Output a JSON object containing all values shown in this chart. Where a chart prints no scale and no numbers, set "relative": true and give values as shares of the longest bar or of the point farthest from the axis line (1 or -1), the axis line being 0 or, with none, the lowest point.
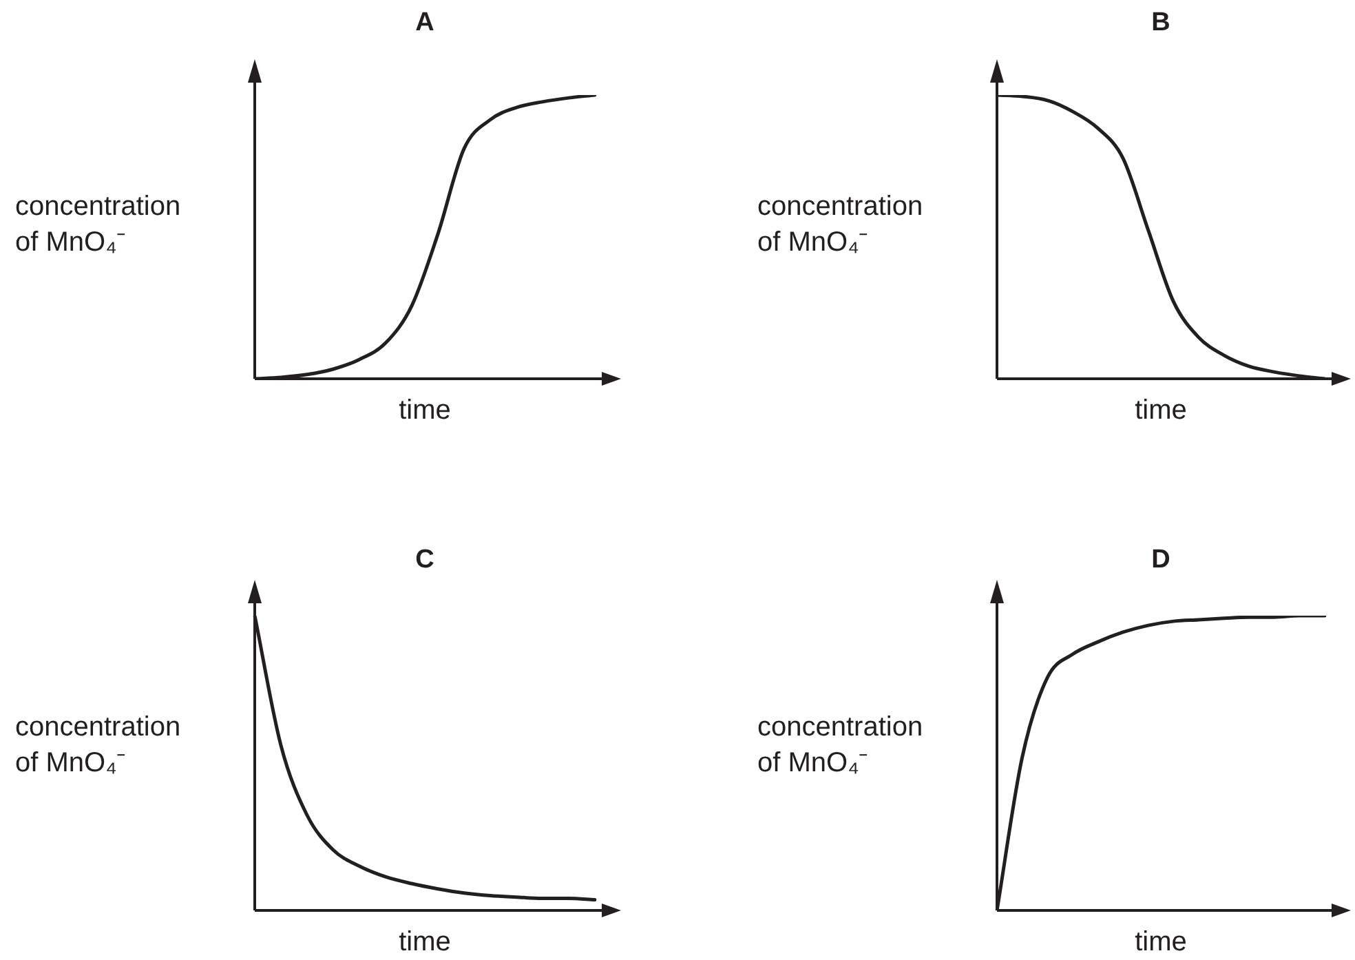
{
  "chart_data": [
    {
      "type": "line",
      "title": "A",
      "xlabel": "time",
      "ylabel": "concentration of MnO₄⁻",
      "relative": true,
      "marker": "none",
      "categories": [
        null,
        null,
        null,
        null,
        null,
        null,
        null,
        null,
        null,
        null,
        null,
        null,
        null,
        null
      ],
      "series": [
        {
          "color": "#231f20",
          "values": [
            0,
            0.005,
            0.015,
            0.034,
            0.068,
            0.126,
            0.257,
            0.51,
            0.811,
            0.913,
            0.956,
            0.976,
            0.99,
            1
          ]
        }
      ]
    },
    {
      "type": "line",
      "title": "B",
      "xlabel": "time",
      "ylabel": "concentration of MnO₄⁻",
      "relative": true,
      "marker": "none",
      "categories": [
        null,
        null,
        null,
        null,
        null,
        null,
        null,
        null,
        null,
        null,
        null,
        null,
        null,
        null
      ],
      "series": [
        {
          "color": "#231f20",
          "values": [
            1,
            0.995,
            0.981,
            0.942,
            0.883,
            0.777,
            0.524,
            0.272,
            0.146,
            0.083,
            0.044,
            0.024,
            0.01,
            0
          ]
        }
      ]
    },
    {
      "type": "line",
      "title": "C",
      "xlabel": "time",
      "ylabel": "concentration of MnO₄⁻",
      "relative": true,
      "marker": "none",
      "categories": [
        null,
        null,
        null,
        null,
        null,
        null,
        null,
        null,
        null,
        null,
        null,
        null,
        null,
        null
      ],
      "series": [
        {
          "color": "#231f20",
          "values": [
            1,
            0.56,
            0.323,
            0.205,
            0.15,
            0.114,
            0.091,
            0.073,
            0.059,
            0.05,
            0.045,
            0.041,
            0.041,
            0.036
          ]
        }
      ]
    },
    {
      "type": "line",
      "title": "D",
      "xlabel": "time",
      "ylabel": "concentration of MnO₄⁻",
      "relative": true,
      "marker": "none",
      "categories": [
        null,
        null,
        null,
        null,
        null,
        null,
        null,
        null,
        null,
        null,
        null,
        null,
        null,
        null
      ],
      "series": [
        {
          "color": "#231f20",
          "values": [
            0,
            0.519,
            0.79,
            0.869,
            0.911,
            0.944,
            0.967,
            0.981,
            0.986,
            0.991,
            0.995,
            0.995,
            1,
            1
          ]
        }
      ]
    }
  ]
}
